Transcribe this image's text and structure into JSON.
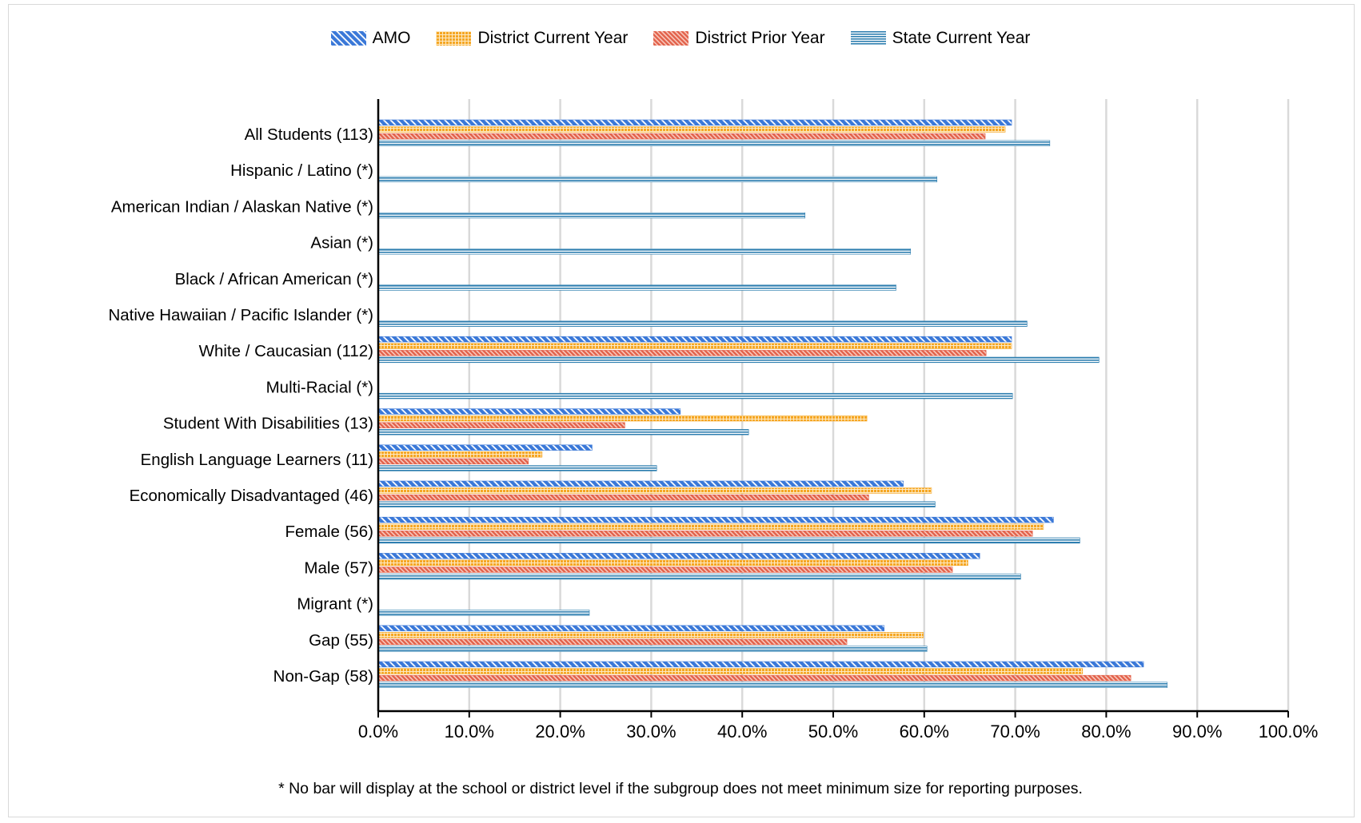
{
  "chart_data": {
    "type": "bar",
    "orientation": "horizontal",
    "categories": [
      "All Students (113)",
      "Hispanic / Latino (*)",
      "American Indian / Alaskan Native (*)",
      "Asian (*)",
      "Black / African American (*)",
      "Native Hawaiian / Pacific Islander (*)",
      "White / Caucasian (112)",
      "Multi-Racial (*)",
      "Student With Disabilities (13)",
      "English Language Learners (11)",
      "Economically Disadvantaged (46)",
      "Female (56)",
      "Male (57)",
      "Migrant (*)",
      "Gap (55)",
      "Non-Gap (58)"
    ],
    "series": [
      {
        "name": "AMO",
        "color": "#3a78d8",
        "pattern": "diagonal-hatch",
        "values": [
          69.6,
          null,
          null,
          null,
          null,
          null,
          69.6,
          null,
          33.2,
          23.5,
          57.7,
          74.2,
          66.1,
          null,
          55.6,
          84.1
        ]
      },
      {
        "name": "District Current Year",
        "color": "#f5a623",
        "pattern": "grid",
        "values": [
          68.9,
          null,
          null,
          null,
          null,
          null,
          69.6,
          null,
          53.7,
          18.0,
          60.8,
          73.1,
          64.8,
          null,
          59.9,
          77.4
        ]
      },
      {
        "name": "District Prior Year",
        "color": "#e2614a",
        "pattern": "diagonal-hatch-fine",
        "values": [
          66.7,
          null,
          null,
          null,
          null,
          null,
          66.8,
          null,
          27.1,
          16.5,
          53.9,
          71.9,
          63.1,
          null,
          51.5,
          82.7
        ]
      },
      {
        "name": "State Current Year",
        "color": "#2f7fb0",
        "pattern": "horizontal-lines",
        "values": [
          73.8,
          61.4,
          46.9,
          58.5,
          56.9,
          71.3,
          79.2,
          69.7,
          40.7,
          30.6,
          61.2,
          77.1,
          70.6,
          23.2,
          60.3,
          86.7
        ]
      }
    ],
    "xlim": [
      0,
      100
    ],
    "xticks": [
      "0.0%",
      "10.0%",
      "20.0%",
      "30.0%",
      "40.0%",
      "50.0%",
      "60.0%",
      "70.0%",
      "80.0%",
      "90.0%",
      "100.0%"
    ],
    "grid": true,
    "legend_position": "top-center"
  },
  "footnote": "* No bar will display at the school or district level if the subgroup does not meet minimum size for reporting purposes."
}
